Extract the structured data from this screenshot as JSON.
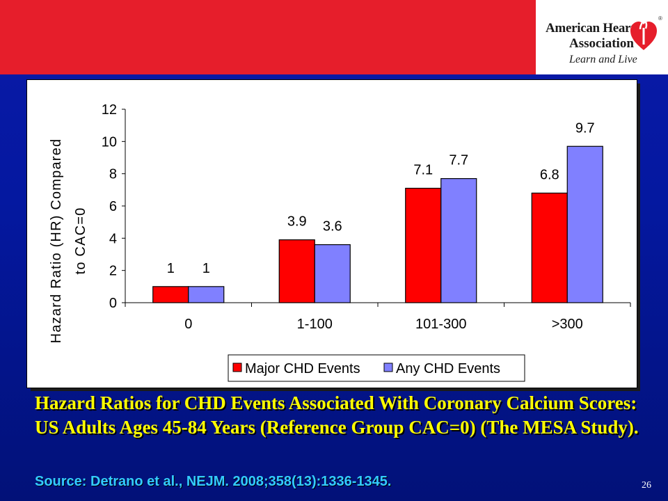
{
  "header": {
    "logo_line1": "American Heart",
    "logo_line2": "Association",
    "logo_tagline": "Learn and Live",
    "logo_mark": "®"
  },
  "chart_data": {
    "type": "bar",
    "ylabel_line1": "Hazard Ratio (HR) Compared",
    "ylabel_line2": "to CAC=0",
    "categories": [
      "0",
      "1-100",
      "101-300",
      ">300"
    ],
    "ylim": [
      0,
      12
    ],
    "yticks": [
      0,
      2,
      4,
      6,
      8,
      10,
      12
    ],
    "grid": false,
    "legend_position": "bottom",
    "series": [
      {
        "name": "Major CHD Events",
        "values": [
          1,
          3.9,
          7.1,
          6.8
        ],
        "labels": [
          "1",
          "3.9",
          "7.1",
          "6.8"
        ],
        "color": "#ff0000"
      },
      {
        "name": "Any CHD Events",
        "values": [
          1,
          3.6,
          7.7,
          9.7
        ],
        "labels": [
          "1",
          "3.6",
          "7.7",
          "9.7"
        ],
        "color": "#8080ff"
      }
    ]
  },
  "caption": {
    "part1": "Hazard Ratios for CHD Events Associated With Coronary Calcium Scores: US Adults Ages 45-84 Years (Reference Group CAC=0)",
    "part2": "(The MESA Study)."
  },
  "source": "Source: Detrano et al., NEJM. 2008;358(13):1336-1345.",
  "page_number": "26"
}
